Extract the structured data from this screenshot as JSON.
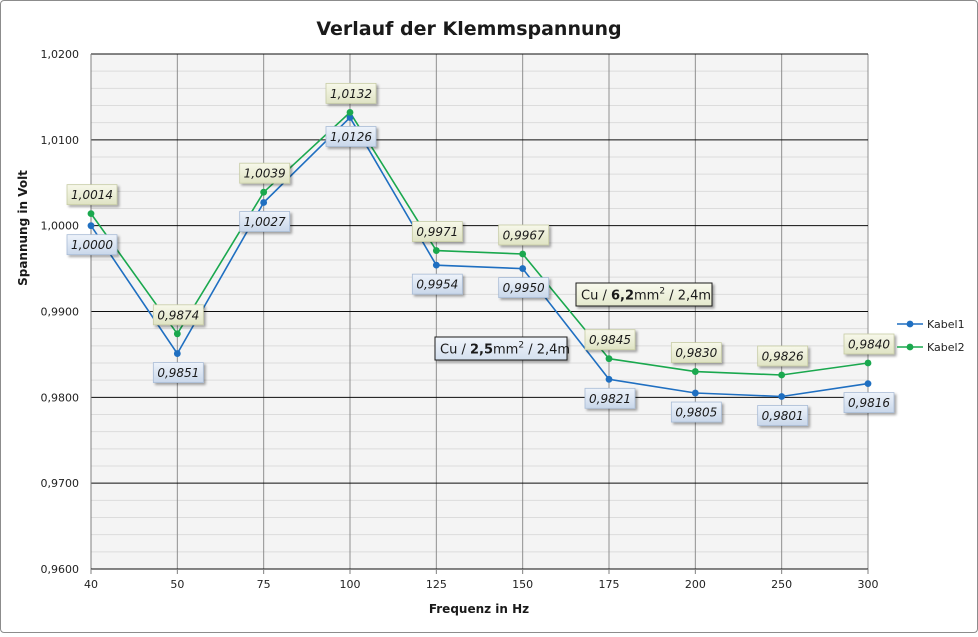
{
  "chart_data": {
    "type": "line",
    "title": "Verlauf der Klemmspannung",
    "xlabel": "Frequenz in Hz",
    "ylabel": "Spannung in Volt",
    "categories": [
      "40",
      "50",
      "75",
      "100",
      "125",
      "150",
      "175",
      "200",
      "250",
      "300"
    ],
    "ylim": [
      0.96,
      1.02
    ],
    "yticks": [
      "0,9600",
      "0,9700",
      "0,9800",
      "0,9900",
      "1,0000",
      "1,0100",
      "1,0200"
    ],
    "grid": true,
    "legend_position": "right",
    "series": [
      {
        "name": "Kabel1",
        "color": "#1f6fc1",
        "values": [
          1.0,
          0.9851,
          1.0027,
          1.0126,
          0.9954,
          0.995,
          0.9821,
          0.9805,
          0.9801,
          0.9816
        ],
        "labels": [
          "1,0000",
          "0,9851",
          "1,0027",
          "1,0126",
          "0,9954",
          "0,9950",
          "0,9821",
          "0,9805",
          "0,9801",
          "0,9816"
        ]
      },
      {
        "name": "Kabel2",
        "color": "#1aa84e",
        "values": [
          1.0014,
          0.9874,
          1.0039,
          1.0132,
          0.9971,
          0.9967,
          0.9845,
          0.983,
          0.9826,
          0.984
        ],
        "labels": [
          "1,0014",
          "0,9874",
          "1,0039",
          "1,0132",
          "0,9971",
          "0,9967",
          "0,9845",
          "0,9830",
          "0,9826",
          "0,9840"
        ]
      }
    ],
    "annotations": [
      {
        "prefix": "Cu / ",
        "bold": "2,5",
        "unit": "mm",
        "sup": "2",
        "suffix": " / 2,4m"
      },
      {
        "prefix": "Cu / ",
        "bold": "6,2",
        "unit": "mm",
        "sup": "2",
        "suffix": " / 2,4m"
      }
    ]
  }
}
